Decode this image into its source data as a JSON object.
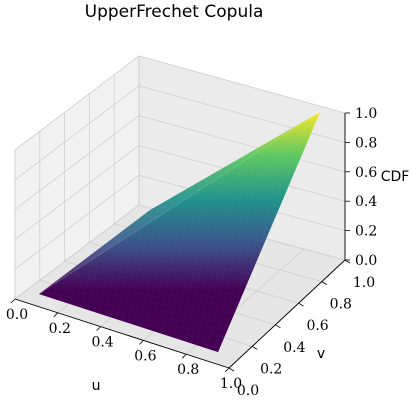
{
  "chart_data": {
    "type": "surface",
    "title": "UpperFrechet Copula",
    "function": "min(u, v)",
    "xlabel": "u",
    "ylabel": "v",
    "zlabel": "CDF",
    "xlim": [
      0,
      1
    ],
    "ylim": [
      0,
      1
    ],
    "zlim": [
      0,
      1
    ],
    "x_ticks": [
      "0.0",
      "0.2",
      "0.4",
      "0.6",
      "0.8",
      "1.0"
    ],
    "y_ticks": [
      "0.0",
      "0.2",
      "0.4",
      "0.6",
      "0.8",
      "1.0"
    ],
    "z_ticks": [
      "0.0",
      "0.2",
      "0.4",
      "0.6",
      "0.8",
      "1.0"
    ],
    "grid": true,
    "colormap": "viridis",
    "grid_points": [
      {
        "u": 0.0,
        "v": 0.0,
        "cdf": 0.0
      },
      {
        "u": 1.0,
        "v": 0.0,
        "cdf": 0.0
      },
      {
        "u": 0.0,
        "v": 1.0,
        "cdf": 0.0
      },
      {
        "u": 0.5,
        "v": 0.5,
        "cdf": 0.5
      },
      {
        "u": 1.0,
        "v": 1.0,
        "cdf": 1.0
      }
    ]
  }
}
